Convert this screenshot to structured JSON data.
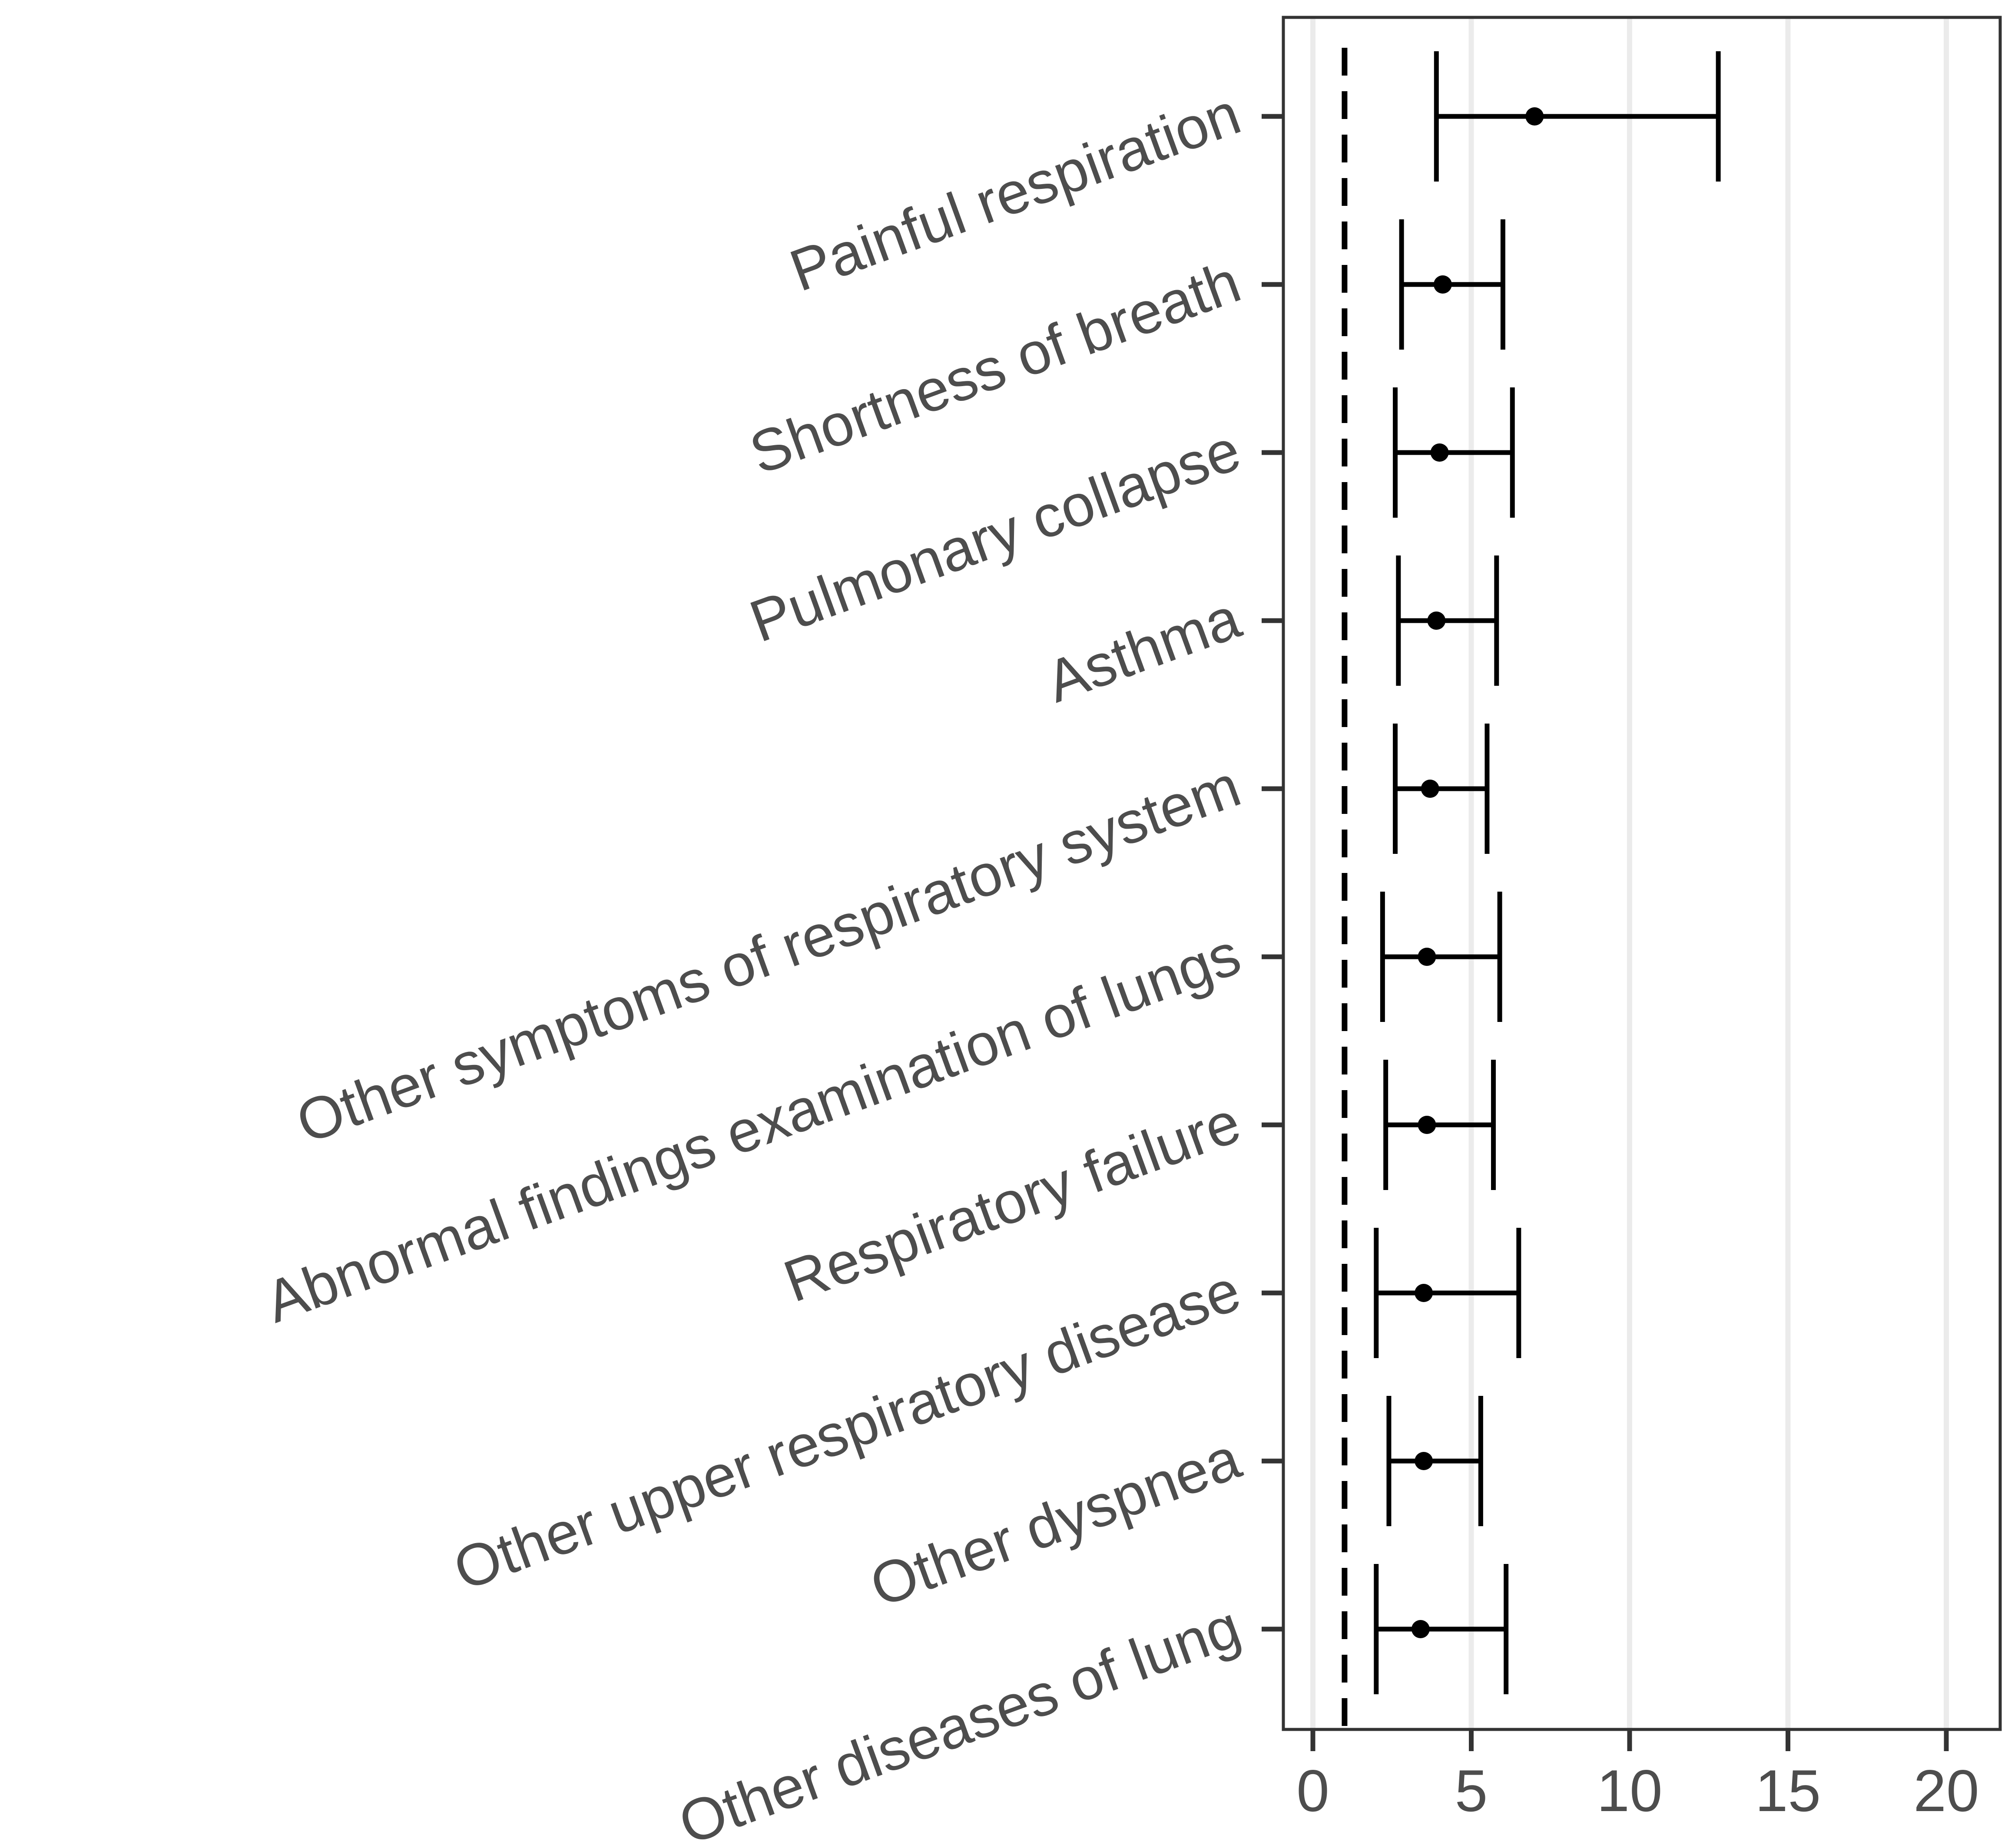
{
  "chart_data": {
    "type": "forest",
    "title": "",
    "xlabel": "",
    "ylabel": "",
    "xlim": [
      -1,
      22
    ],
    "x_ticks": [
      0,
      5,
      10,
      15,
      20
    ],
    "reference_line": 1,
    "grid": "vertical major gridlines",
    "categories": [
      "Painful respiration",
      "Shortness of breath",
      "Pulmonary collapse",
      "Asthma",
      "Other symptoms of respiratory system",
      "Abnormal findings examination of lungs",
      "Respiratory failure",
      "Other upper respiratory disease",
      "Other dyspnea",
      "Other diseases of lung"
    ],
    "estimates": [
      7.0,
      4.1,
      4.0,
      3.9,
      3.7,
      3.6,
      3.6,
      3.5,
      3.5,
      3.4
    ],
    "ci_lower": [
      3.9,
      2.8,
      2.6,
      2.7,
      2.6,
      2.2,
      2.3,
      2.0,
      2.4,
      2.0
    ],
    "ci_upper": [
      12.8,
      6.0,
      6.3,
      5.8,
      5.5,
      5.9,
      5.7,
      6.5,
      5.3,
      6.1
    ],
    "colors": {
      "panel_border": "#333333",
      "grid": "#ebebeb",
      "marks": "#000000",
      "text": "#4d4d4d"
    }
  }
}
